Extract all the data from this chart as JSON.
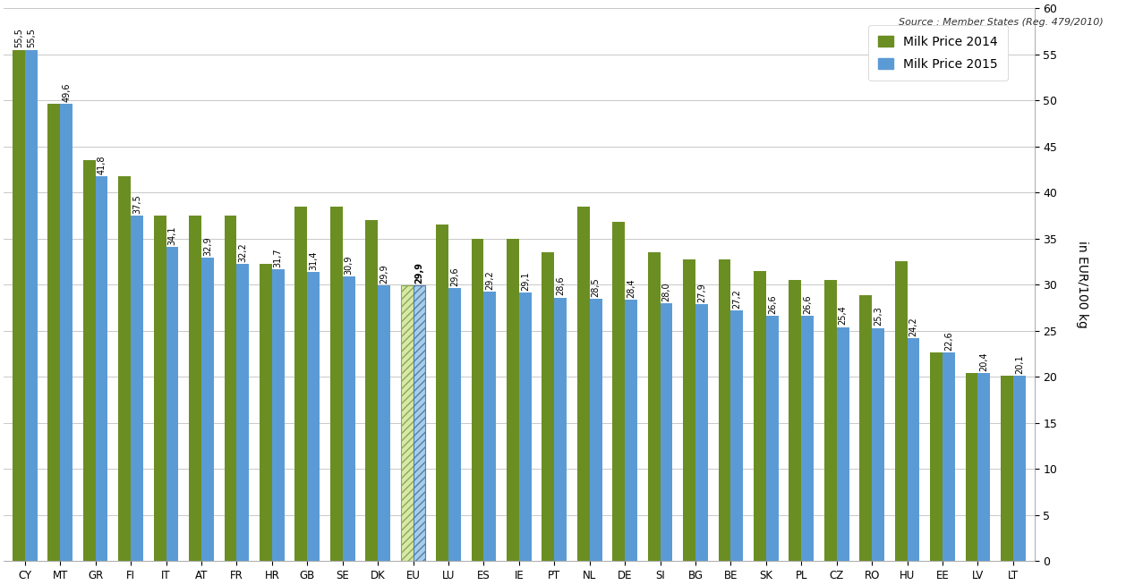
{
  "categories": [
    "CY",
    "MT",
    "GR",
    "FI",
    "IT",
    "AT",
    "FR",
    "HR",
    "GB",
    "SE",
    "DK",
    "EU",
    "LU",
    "ES",
    "IE",
    "PT",
    "NL",
    "DE",
    "SI",
    "BG",
    "BE",
    "SK",
    "PL",
    "CZ",
    "RO",
    "HU",
    "EE",
    "LV",
    "LT"
  ],
  "price_2014": [
    55.5,
    49.6,
    43.5,
    41.8,
    37.5,
    37.5,
    37.5,
    32.2,
    38.5,
    38.5,
    37.0,
    29.9,
    36.5,
    35.0,
    35.0,
    33.5,
    38.5,
    36.8,
    33.5,
    32.7,
    32.7,
    31.5,
    30.5,
    30.5,
    28.8,
    32.5,
    22.6,
    20.4,
    20.1
  ],
  "price_2015": [
    55.5,
    49.6,
    41.8,
    37.5,
    34.1,
    32.9,
    32.2,
    31.7,
    31.4,
    30.9,
    29.9,
    29.9,
    29.6,
    29.2,
    29.1,
    28.6,
    28.5,
    28.4,
    28.0,
    27.9,
    27.2,
    26.6,
    26.6,
    25.4,
    25.3,
    24.2,
    22.6,
    20.4,
    20.1
  ],
  "color_2014": "#6B8E23",
  "color_2015": "#5B9BD5",
  "bar_width": 0.35,
  "ylim": [
    0,
    60
  ],
  "yticks": [
    0,
    5,
    10,
    15,
    20,
    25,
    30,
    35,
    40,
    45,
    50,
    55,
    60
  ],
  "ylabel": "in EUR/100 kg",
  "source_text": "Source : Member States (Reg. 479/2010)",
  "legend_label_2014": "Milk Price 2014",
  "legend_label_2015": "Milk Price 2015",
  "background_color": "#FFFFFF",
  "grid_color": "#C8C8C8"
}
